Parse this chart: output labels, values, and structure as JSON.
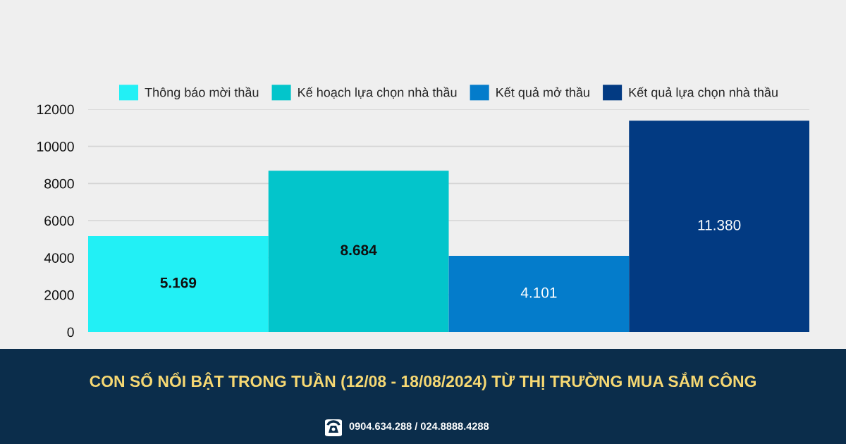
{
  "chart_data": {
    "type": "bar",
    "title": "CON SỐ NỔI BẬT TRONG TUẦN (12/08 - 18/08/2024) TỪ THỊ TRƯỜNG MUA SẮM CÔNG",
    "categories": [
      null
    ],
    "series": [
      {
        "name": "Thông báo mời thầu",
        "color": "#22f0f5",
        "values": [
          5169
        ],
        "value_labels": [
          "5.169"
        ]
      },
      {
        "name": "Kế hoạch lựa chọn nhà thầu",
        "color": "#03c5cb",
        "values": [
          8684
        ],
        "value_labels": [
          "8.684"
        ]
      },
      {
        "name": "Kết quả mở thầu",
        "color": "#047ccb",
        "values": [
          4101
        ],
        "value_labels": [
          "4.101"
        ]
      },
      {
        "name": "Kết quả lựa chọn nhà thầu",
        "color": "#023a82",
        "values": [
          11380
        ],
        "value_labels": [
          "11.380"
        ]
      }
    ],
    "ylim": [
      0,
      12000
    ],
    "yticks": [
      0,
      2000,
      4000,
      6000,
      8000,
      10000,
      12000
    ],
    "tick_labels": "y",
    "grid": "y",
    "legend": "top",
    "annotations": [
      "0904.634.288 / 024.8888.4288"
    ]
  }
}
